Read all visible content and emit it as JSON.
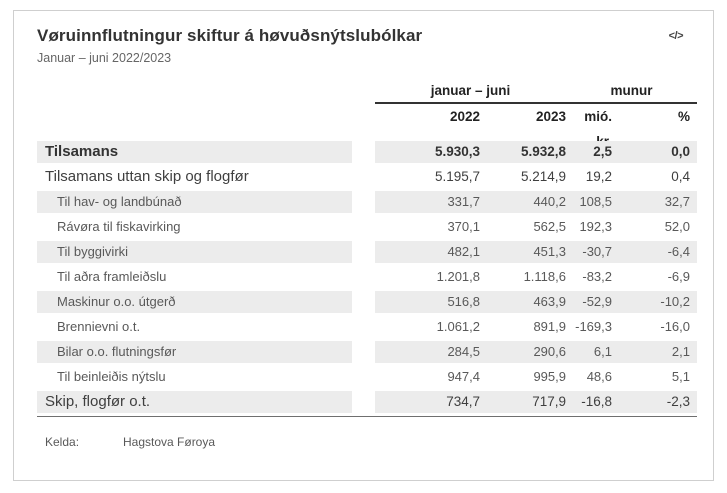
{
  "header": {
    "title": "Vøruinnflutningur skiftur á høvuðsnýtslubólkar",
    "subtitle": "Januar – juni 2022/2023",
    "embed_icon": "</>"
  },
  "table": {
    "group_headers": {
      "period": "januar – juni",
      "difference": "munur"
    },
    "columns": {
      "c0": "2022",
      "c1": "2023",
      "c2": "mió. kr.",
      "c3": "%"
    },
    "rows": [
      {
        "label": "Tilsamans",
        "level": "main",
        "bold": true,
        "striped": true,
        "values": [
          "5.930,3",
          "5.932,8",
          "2,5",
          "0,0"
        ]
      },
      {
        "label": "Tilsamans uttan skip og flogfør",
        "level": "main",
        "bold": false,
        "striped": false,
        "values": [
          "5.195,7",
          "5.214,9",
          "19,2",
          "0,4"
        ]
      },
      {
        "label": "Til hav- og landbúnað",
        "level": "sub",
        "bold": false,
        "striped": true,
        "values": [
          "331,7",
          "440,2",
          "108,5",
          "32,7"
        ]
      },
      {
        "label": "Rávøra til fiskavirking",
        "level": "sub",
        "bold": false,
        "striped": false,
        "values": [
          "370,1",
          "562,5",
          "192,3",
          "52,0"
        ]
      },
      {
        "label": "Til byggivirki",
        "level": "sub",
        "bold": false,
        "striped": true,
        "values": [
          "482,1",
          "451,3",
          "-30,7",
          "-6,4"
        ]
      },
      {
        "label": "Til aðra framleiðslu",
        "level": "sub",
        "bold": false,
        "striped": false,
        "values": [
          "1.201,8",
          "1.118,6",
          "-83,2",
          "-6,9"
        ]
      },
      {
        "label": "Maskinur o.o. útgerð",
        "level": "sub",
        "bold": false,
        "striped": true,
        "values": [
          "516,8",
          "463,9",
          "-52,9",
          "-10,2"
        ]
      },
      {
        "label": "Brennievni o.t.",
        "level": "sub",
        "bold": false,
        "striped": false,
        "values": [
          "1.061,2",
          "891,9",
          "-169,3",
          "-16,0"
        ]
      },
      {
        "label": "Bilar o.o. flutningsfør",
        "level": "sub",
        "bold": false,
        "striped": true,
        "values": [
          "284,5",
          "290,6",
          "6,1",
          "2,1"
        ]
      },
      {
        "label": "Til beinleiðis nýtslu",
        "level": "sub",
        "bold": false,
        "striped": false,
        "values": [
          "947,4",
          "995,9",
          "48,6",
          "5,1"
        ]
      },
      {
        "label": "Skip, flogfør o.t.",
        "level": "main",
        "bold": false,
        "striped": true,
        "values": [
          "734,7",
          "717,9",
          "-16,8",
          "-2,3"
        ]
      }
    ]
  },
  "footer": {
    "source_label": "Kelda:",
    "source_value": "Hagstova Føroya"
  },
  "colors": {
    "stripe": "#ececec",
    "header_text": "#222222",
    "body_text": "#595959",
    "title_text": "#333333",
    "card_border": "#cfcfcf",
    "header_rule": "#2b2b2b",
    "bottom_rule": "#6f6f6f"
  }
}
